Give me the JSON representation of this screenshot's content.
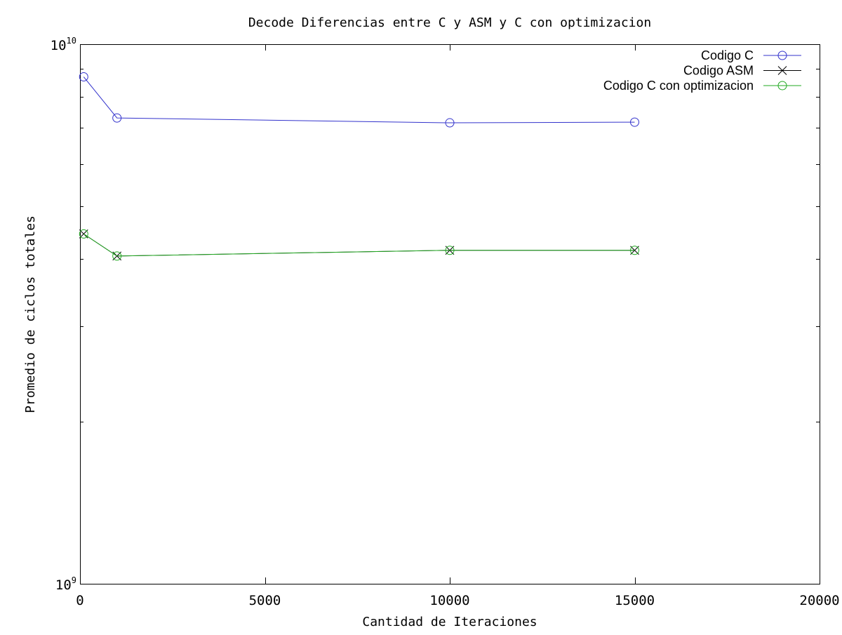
{
  "chart_data": {
    "type": "line",
    "title": "Decode Diferencias entre C y ASM y C con optimizacion",
    "xlabel": "Cantidad de Iteraciones",
    "ylabel": "Promedio de ciclos totales",
    "xlim": [
      0,
      20000
    ],
    "ylim": [
      1000000000,
      10000000000
    ],
    "y_scale": "log",
    "grid": false,
    "legend_position": "top-right",
    "x_ticks": [
      0,
      5000,
      10000,
      15000,
      20000
    ],
    "x_tick_labels": [
      "0",
      "5000",
      "10000",
      "15000",
      "20000"
    ],
    "y_tick_labels": [
      {
        "value": 1000000000,
        "base": "10",
        "exp": "9"
      },
      {
        "value": 10000000000,
        "base": "10",
        "exp": "10"
      }
    ],
    "y_minor_ticks": [
      2000000000,
      3000000000,
      4000000000,
      5000000000,
      6000000000,
      7000000000,
      8000000000,
      9000000000
    ],
    "x": [
      100,
      1000,
      10000,
      15000
    ],
    "series": [
      {
        "name": "Codigo C",
        "marker": "circle",
        "color": "#3333cc",
        "values": [
          8700000000,
          7300000000,
          7150000000,
          7170000000
        ]
      },
      {
        "name": "Codigo ASM",
        "marker": "cross",
        "color": "#000000",
        "values": [
          4450000000,
          4050000000,
          4150000000,
          4150000000
        ]
      },
      {
        "name": "Codigo C con optimizacion",
        "marker": "circle",
        "color": "#22aa22",
        "values": [
          4450000000,
          4050000000,
          4150000000,
          4150000000
        ]
      }
    ]
  }
}
